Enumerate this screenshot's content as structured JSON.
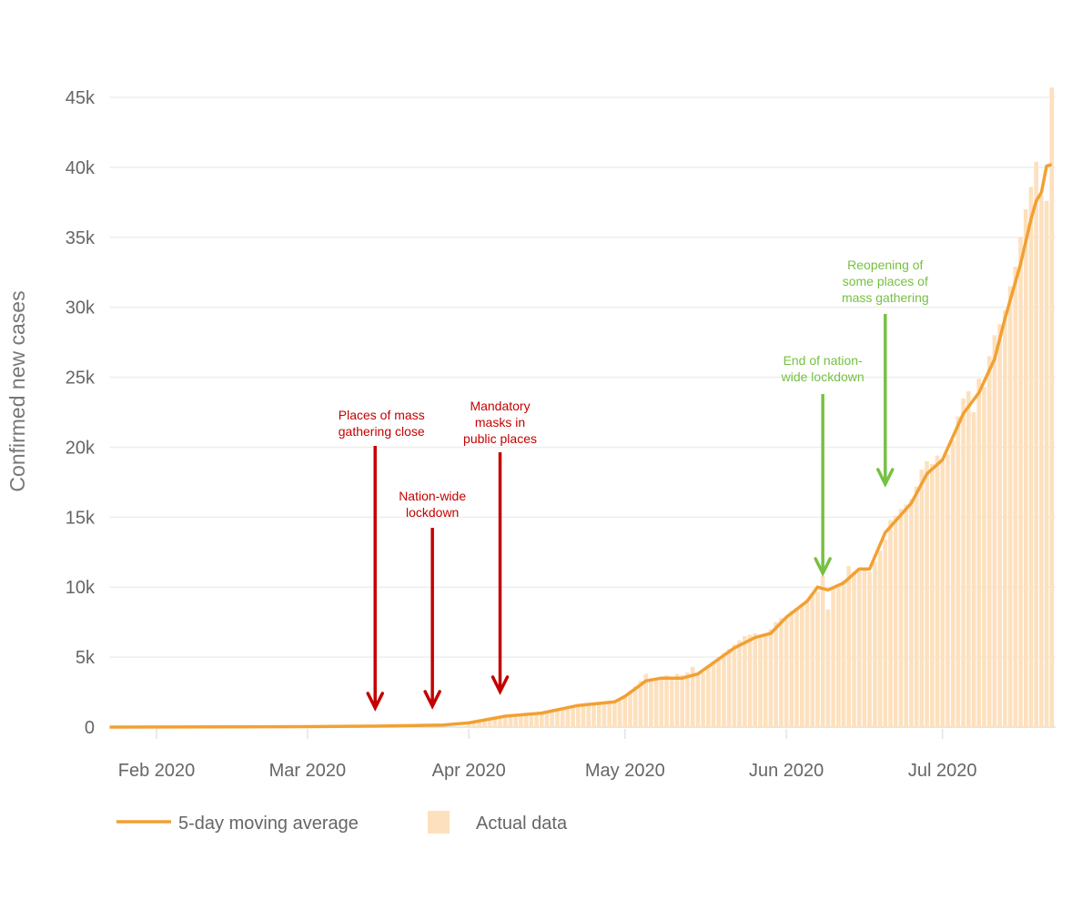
{
  "chart_data": {
    "type": "bar+line",
    "title": "",
    "xlabel": "",
    "ylabel": "Confirmed new cases",
    "xlim": [
      "2020-01-23",
      "2020-07-22"
    ],
    "ylim": [
      0,
      45000
    ],
    "grid": "horizontal",
    "legend_position": "bottom-left",
    "x_ticks": [
      {
        "date": "2020-02-01",
        "label": "Feb 2020"
      },
      {
        "date": "2020-03-01",
        "label": "Mar 2020"
      },
      {
        "date": "2020-04-01",
        "label": "Apr 2020"
      },
      {
        "date": "2020-05-01",
        "label": "May 2020"
      },
      {
        "date": "2020-06-01",
        "label": "Jun 2020"
      },
      {
        "date": "2020-07-01",
        "label": "Jul 2020"
      }
    ],
    "y_ticks": [
      {
        "value": 0,
        "label": "0"
      },
      {
        "value": 5000,
        "label": "5k"
      },
      {
        "value": 10000,
        "label": "10k"
      },
      {
        "value": 15000,
        "label": "15k"
      },
      {
        "value": 20000,
        "label": "20k"
      },
      {
        "value": 25000,
        "label": "25k"
      },
      {
        "value": 30000,
        "label": "30k"
      },
      {
        "value": 35000,
        "label": "35k"
      },
      {
        "value": 40000,
        "label": "40k"
      },
      {
        "value": 45000,
        "label": "45k"
      }
    ],
    "legend": {
      "line_label": "5-day moving average",
      "bar_label": "Actual data"
    },
    "colors": {
      "line": "#f2a033",
      "bars": "#fde0bd",
      "grid": "#eeeeee",
      "policy_restrict": "#c40000",
      "policy_relax": "#77c043"
    },
    "moving_average": [
      [
        "2020-01-23",
        0
      ],
      [
        "2020-02-15",
        10
      ],
      [
        "2020-03-01",
        30
      ],
      [
        "2020-03-15",
        70
      ],
      [
        "2020-03-27",
        150
      ],
      [
        "2020-04-01",
        300
      ],
      [
        "2020-04-08",
        780
      ],
      [
        "2020-04-15",
        1000
      ],
      [
        "2020-04-22",
        1550
      ],
      [
        "2020-04-29",
        1800
      ],
      [
        "2020-05-01",
        2200
      ],
      [
        "2020-05-05",
        3300
      ],
      [
        "2020-05-08",
        3500
      ],
      [
        "2020-05-12",
        3500
      ],
      [
        "2020-05-15",
        3800
      ],
      [
        "2020-05-22",
        5650
      ],
      [
        "2020-05-26",
        6400
      ],
      [
        "2020-05-29",
        6700
      ],
      [
        "2020-06-01",
        7850
      ],
      [
        "2020-06-05",
        9000
      ],
      [
        "2020-06-07",
        10000
      ],
      [
        "2020-06-09",
        9800
      ],
      [
        "2020-06-12",
        10300
      ],
      [
        "2020-06-15",
        11300
      ],
      [
        "2020-06-17",
        11300
      ],
      [
        "2020-06-20",
        13900
      ],
      [
        "2020-06-25",
        16000
      ],
      [
        "2020-06-28",
        18100
      ],
      [
        "2020-07-01",
        19100
      ],
      [
        "2020-07-05",
        22400
      ],
      [
        "2020-07-08",
        23900
      ],
      [
        "2020-07-11",
        26300
      ],
      [
        "2020-07-13",
        29200
      ],
      [
        "2020-07-16",
        33100
      ],
      [
        "2020-07-18",
        36300
      ],
      [
        "2020-07-19",
        37600
      ],
      [
        "2020-07-20",
        38200
      ],
      [
        "2020-07-21",
        40100
      ],
      [
        "2020-07-22",
        40200
      ]
    ],
    "actual": [
      [
        "2020-04-01",
        330
      ],
      [
        "2020-04-02",
        420
      ],
      [
        "2020-04-03",
        480
      ],
      [
        "2020-04-04",
        560
      ],
      [
        "2020-04-05",
        620
      ],
      [
        "2020-04-06",
        680
      ],
      [
        "2020-04-07",
        740
      ],
      [
        "2020-04-08",
        780
      ],
      [
        "2020-04-09",
        850
      ],
      [
        "2020-04-10",
        830
      ],
      [
        "2020-04-11",
        900
      ],
      [
        "2020-04-12",
        920
      ],
      [
        "2020-04-13",
        980
      ],
      [
        "2020-04-14",
        1000
      ],
      [
        "2020-04-15",
        1050
      ],
      [
        "2020-04-16",
        1000
      ],
      [
        "2020-04-17",
        1150
      ],
      [
        "2020-04-18",
        1250
      ],
      [
        "2020-04-19",
        1350
      ],
      [
        "2020-04-20",
        1400
      ],
      [
        "2020-04-21",
        1450
      ],
      [
        "2020-04-22",
        1550
      ],
      [
        "2020-04-23",
        1600
      ],
      [
        "2020-04-24",
        1550
      ],
      [
        "2020-04-25",
        1700
      ],
      [
        "2020-04-26",
        1650
      ],
      [
        "2020-04-27",
        1750
      ],
      [
        "2020-04-28",
        1850
      ],
      [
        "2020-04-29",
        1900
      ],
      [
        "2020-04-30",
        1950
      ],
      [
        "2020-05-01",
        2300
      ],
      [
        "2020-05-02",
        2600
      ],
      [
        "2020-05-03",
        2900
      ],
      [
        "2020-05-04",
        3300
      ],
      [
        "2020-05-05",
        3800
      ],
      [
        "2020-05-06",
        3500
      ],
      [
        "2020-05-07",
        3450
      ],
      [
        "2020-05-08",
        3550
      ],
      [
        "2020-05-09",
        3700
      ],
      [
        "2020-05-10",
        3600
      ],
      [
        "2020-05-11",
        3800
      ],
      [
        "2020-05-12",
        3700
      ],
      [
        "2020-05-13",
        3900
      ],
      [
        "2020-05-14",
        4300
      ],
      [
        "2020-05-15",
        3800
      ],
      [
        "2020-05-16",
        3900
      ],
      [
        "2020-05-17",
        4400
      ],
      [
        "2020-05-18",
        4700
      ],
      [
        "2020-05-19",
        5000
      ],
      [
        "2020-05-20",
        5300
      ],
      [
        "2020-05-21",
        5600
      ],
      [
        "2020-05-22",
        5900
      ],
      [
        "2020-05-23",
        6200
      ],
      [
        "2020-05-24",
        6500
      ],
      [
        "2020-05-25",
        6600
      ],
      [
        "2020-05-26",
        6700
      ],
      [
        "2020-05-27",
        6400
      ],
      [
        "2020-05-28",
        6700
      ],
      [
        "2020-05-29",
        7000
      ],
      [
        "2020-05-30",
        7500
      ],
      [
        "2020-05-31",
        7800
      ],
      [
        "2020-06-01",
        7900
      ],
      [
        "2020-06-02",
        8300
      ],
      [
        "2020-06-03",
        8500
      ],
      [
        "2020-06-04",
        8800
      ],
      [
        "2020-06-05",
        9100
      ],
      [
        "2020-06-06",
        9500
      ],
      [
        "2020-06-07",
        9700
      ],
      [
        "2020-06-08",
        10800
      ],
      [
        "2020-06-09",
        8400
      ],
      [
        "2020-06-10",
        9900
      ],
      [
        "2020-06-11",
        10100
      ],
      [
        "2020-06-12",
        10500
      ],
      [
        "2020-06-13",
        11500
      ],
      [
        "2020-06-14",
        11100
      ],
      [
        "2020-06-15",
        11300
      ],
      [
        "2020-06-16",
        11400
      ],
      [
        "2020-06-17",
        11100
      ],
      [
        "2020-06-18",
        11800
      ],
      [
        "2020-06-19",
        12600
      ],
      [
        "2020-06-20",
        13400
      ],
      [
        "2020-06-21",
        14800
      ],
      [
        "2020-06-22",
        15100
      ],
      [
        "2020-06-23",
        15600
      ],
      [
        "2020-06-24",
        15900
      ],
      [
        "2020-06-25",
        16300
      ],
      [
        "2020-06-26",
        17200
      ],
      [
        "2020-06-27",
        18400
      ],
      [
        "2020-06-28",
        19000
      ],
      [
        "2020-06-29",
        18800
      ],
      [
        "2020-06-30",
        19400
      ],
      [
        "2020-07-01",
        19200
      ],
      [
        "2020-07-02",
        19500
      ],
      [
        "2020-07-03",
        20500
      ],
      [
        "2020-07-04",
        22200
      ],
      [
        "2020-07-05",
        23500
      ],
      [
        "2020-07-06",
        24000
      ],
      [
        "2020-07-07",
        22500
      ],
      [
        "2020-07-08",
        24900
      ],
      [
        "2020-07-09",
        24300
      ],
      [
        "2020-07-10",
        26500
      ],
      [
        "2020-07-11",
        28000
      ],
      [
        "2020-07-12",
        28800
      ],
      [
        "2020-07-13",
        29800
      ],
      [
        "2020-07-14",
        31500
      ],
      [
        "2020-07-15",
        32900
      ],
      [
        "2020-07-16",
        35000
      ],
      [
        "2020-07-17",
        37000
      ],
      [
        "2020-07-18",
        38600
      ],
      [
        "2020-07-19",
        40400
      ],
      [
        "2020-07-20",
        38000
      ],
      [
        "2020-07-21",
        37600
      ],
      [
        "2020-07-22",
        45700
      ]
    ],
    "annotations": [
      {
        "date": "2020-03-14",
        "lines": [
          "Places of mass",
          "gathering close"
        ],
        "kind": "restrict"
      },
      {
        "date": "2020-03-25",
        "lines": [
          "Nation-wide",
          "lockdown"
        ],
        "kind": "restrict"
      },
      {
        "date": "2020-04-07",
        "lines": [
          "Mandatory",
          "masks in",
          "public places"
        ],
        "kind": "restrict"
      },
      {
        "date": "2020-06-08",
        "lines": [
          "End of nation-",
          "wide lockdown"
        ],
        "kind": "relax"
      },
      {
        "date": "2020-06-20",
        "lines": [
          "Reopening of",
          "some places of",
          "mass gathering"
        ],
        "kind": "relax"
      }
    ]
  }
}
